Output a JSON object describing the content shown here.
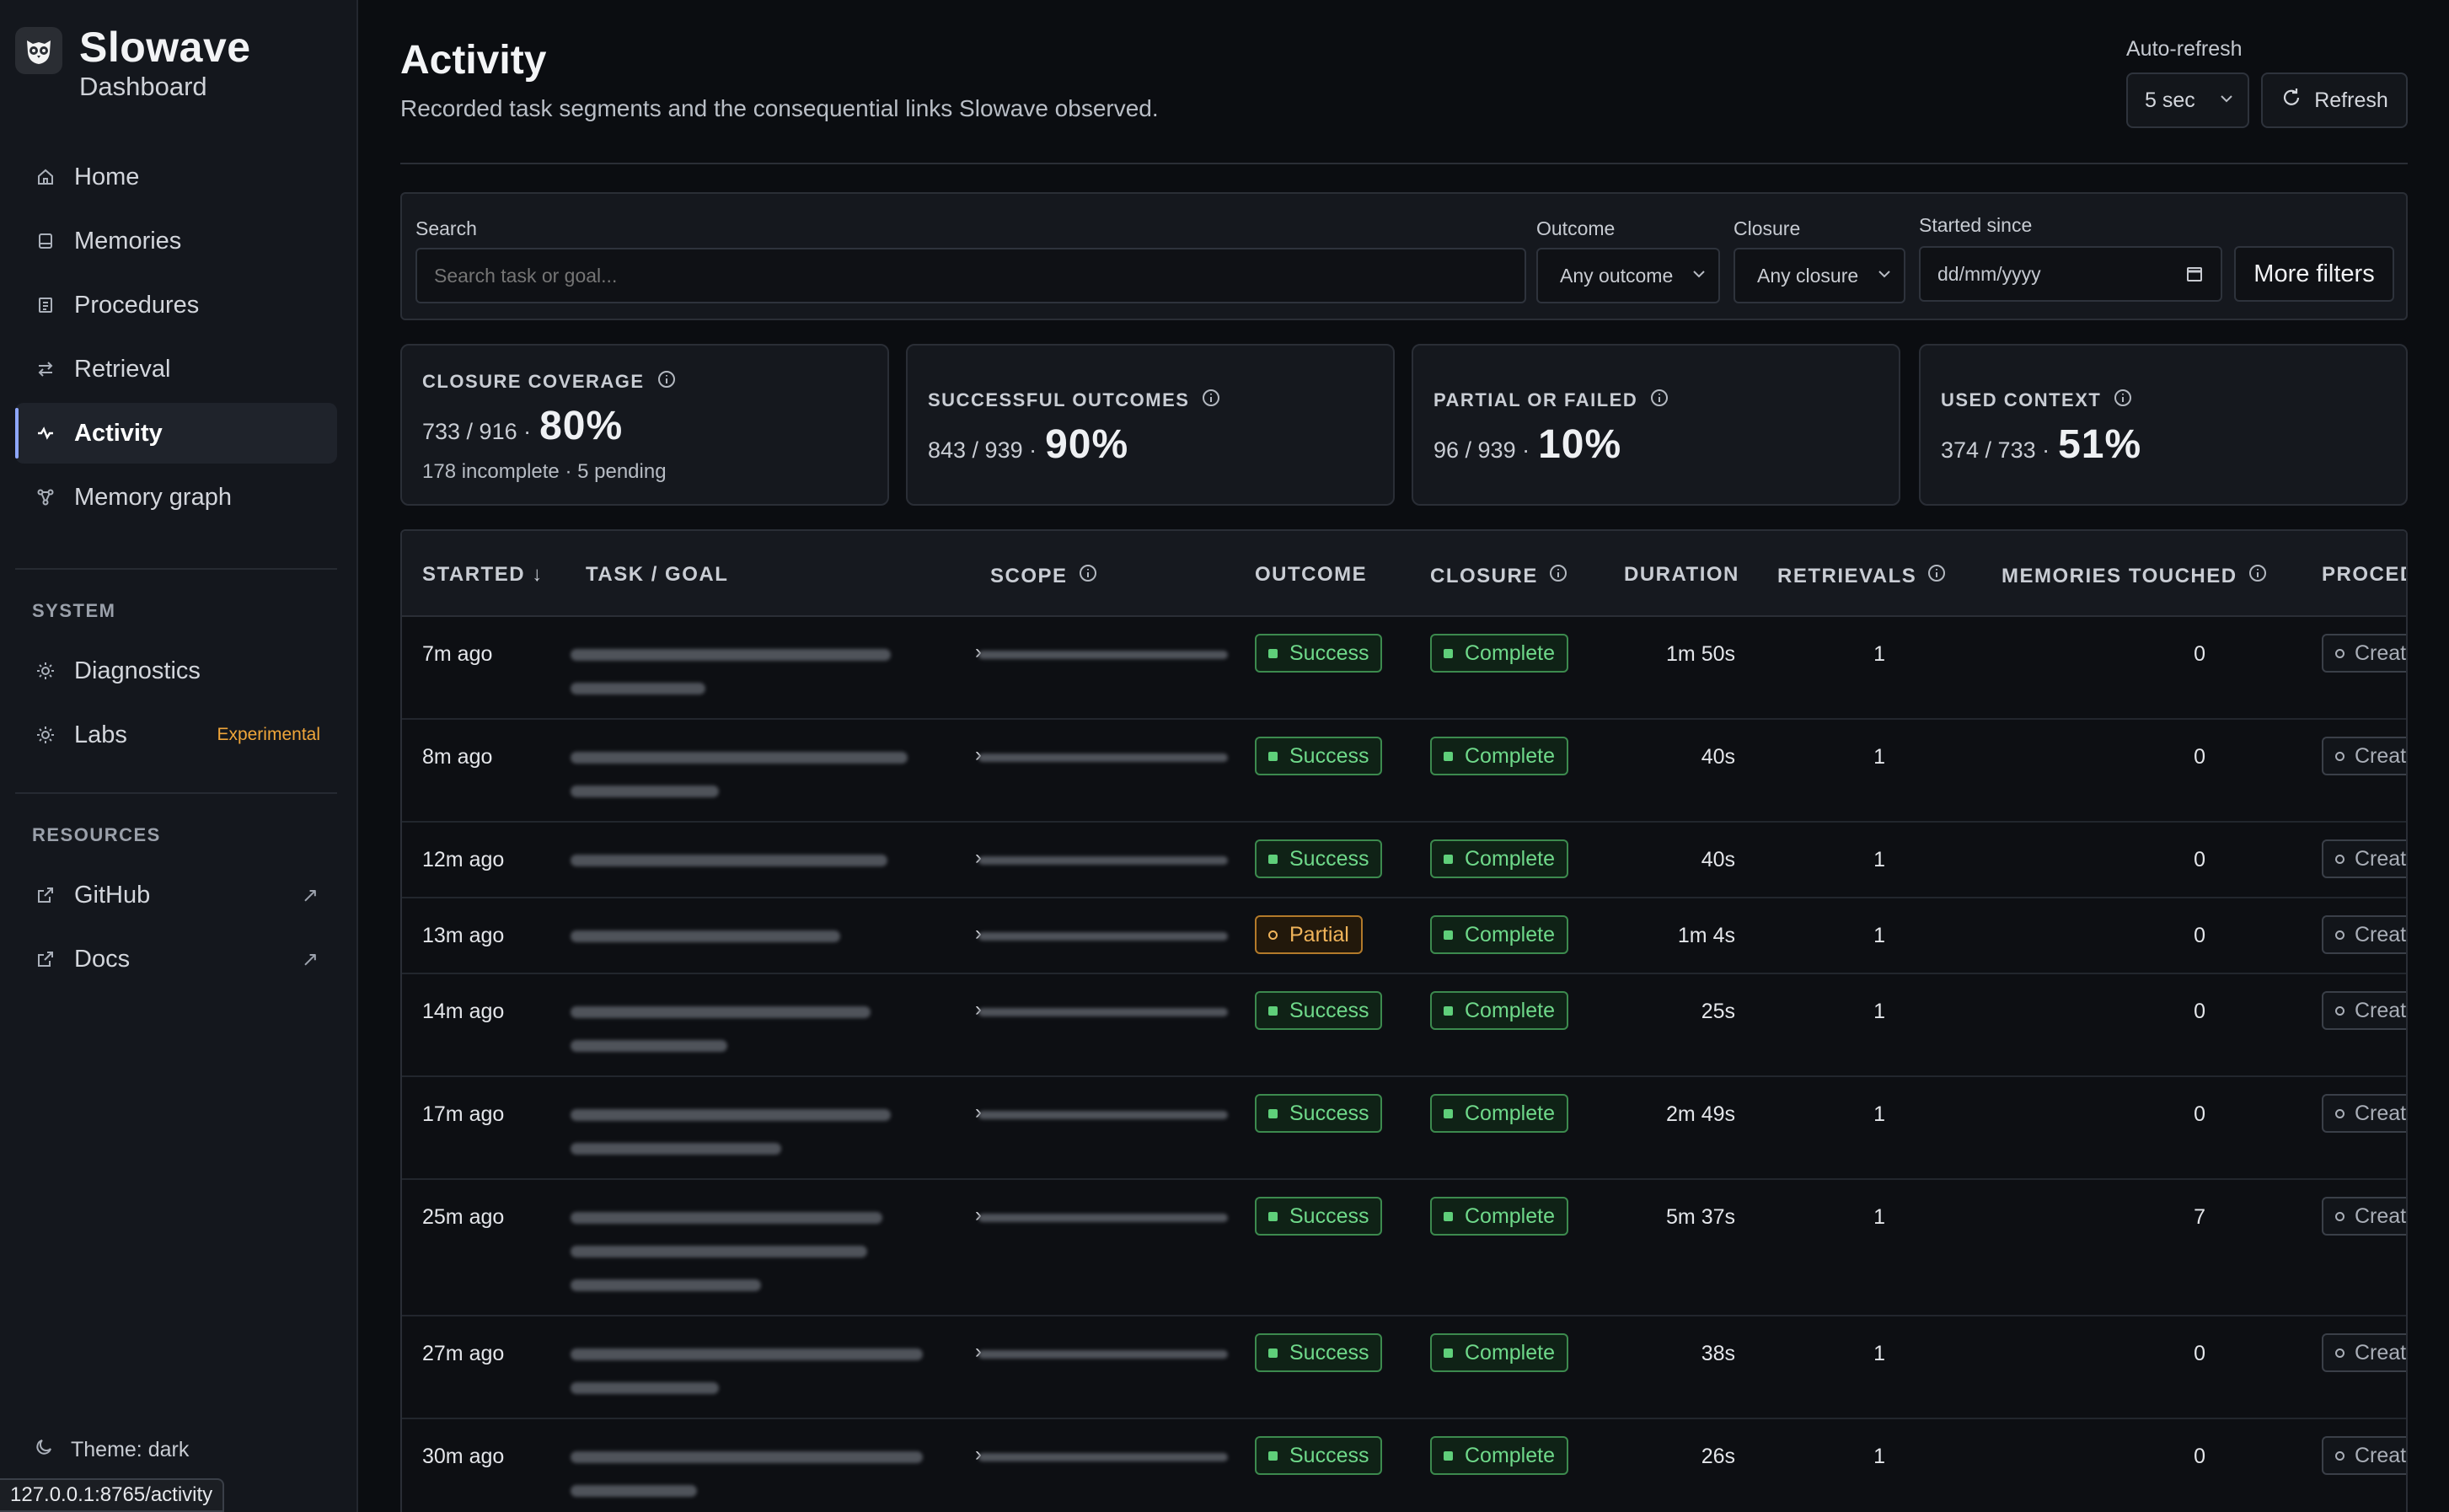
{
  "brand": {
    "title": "Slowave",
    "subtitle": "Dashboard",
    "logo_icon": "owl-icon"
  },
  "sidebar": {
    "items": [
      {
        "label": "Home",
        "icon": "home-icon"
      },
      {
        "label": "Memories",
        "icon": "memory-icon"
      },
      {
        "label": "Procedures",
        "icon": "document-icon"
      },
      {
        "label": "Retrieval",
        "icon": "arrows-icon"
      },
      {
        "label": "Activity",
        "icon": "pulse-icon",
        "active": true
      },
      {
        "label": "Memory graph",
        "icon": "graph-icon"
      }
    ],
    "system_heading": "SYSTEM",
    "system_items": [
      {
        "label": "Diagnostics",
        "icon": "sun-icon"
      },
      {
        "label": "Labs",
        "icon": "sun-icon",
        "badge": "Experimental"
      }
    ],
    "resources_heading": "RESOURCES",
    "resource_items": [
      {
        "label": "GitHub",
        "icon": "external-link-icon"
      },
      {
        "label": "Docs",
        "icon": "external-link-icon"
      }
    ],
    "theme": "Theme: dark",
    "url_tooltip": "127.0.0.1:8765/activity"
  },
  "header": {
    "title": "Activity",
    "subtitle": "Recorded task segments and the consequential links Slowave observed.",
    "auto_refresh_label": "Auto-refresh",
    "auto_refresh_value": "5 sec",
    "refresh_label": "Refresh"
  },
  "filters": {
    "search_label": "Search",
    "search_placeholder": "Search task or goal...",
    "outcome_label": "Outcome",
    "outcome_value": "Any outcome",
    "closure_label": "Closure",
    "closure_value": "Any closure",
    "started_label": "Started since",
    "started_placeholder": "dd/mm/yyyy",
    "more_label": "More filters"
  },
  "stats": [
    {
      "label": "CLOSURE COVERAGE",
      "fraction": "733 / 916 ·",
      "percent": "80%",
      "note": "178 incomplete · 5 pending"
    },
    {
      "label": "SUCCESSFUL OUTCOMES",
      "fraction": "843 / 939 ·",
      "percent": "90%"
    },
    {
      "label": "PARTIAL OR FAILED",
      "fraction": "96 / 939 ·",
      "percent": "10%"
    },
    {
      "label": "USED CONTEXT",
      "fraction": "374 / 733 ·",
      "percent": "51%"
    }
  ],
  "table": {
    "columns": {
      "started": "STARTED ↓",
      "task": "TASK / GOAL",
      "scope": "SCOPE",
      "outcome": "OUTCOME",
      "closure": "CLOSURE",
      "duration": "DURATION",
      "retrievals": "RETRIEVALS",
      "memories": "MEMORIES TOUCHED",
      "procedures": "PROCED"
    },
    "create_label": "Creat",
    "rows": [
      {
        "started": "7m ago",
        "outcome": "Success",
        "closure": "Complete",
        "duration": "1m 50s",
        "retrievals": "1",
        "memories": "0"
      },
      {
        "started": "8m ago",
        "outcome": "Success",
        "closure": "Complete",
        "duration": "40s",
        "retrievals": "1",
        "memories": "0"
      },
      {
        "started": "12m ago",
        "outcome": "Success",
        "closure": "Complete",
        "duration": "40s",
        "retrievals": "1",
        "memories": "0"
      },
      {
        "started": "13m ago",
        "outcome": "Partial",
        "closure": "Complete",
        "duration": "1m 4s",
        "retrievals": "1",
        "memories": "0"
      },
      {
        "started": "14m ago",
        "outcome": "Success",
        "closure": "Complete",
        "duration": "25s",
        "retrievals": "1",
        "memories": "0"
      },
      {
        "started": "17m ago",
        "outcome": "Success",
        "closure": "Complete",
        "duration": "2m 49s",
        "retrievals": "1",
        "memories": "0"
      },
      {
        "started": "25m ago",
        "outcome": "Success",
        "closure": "Complete",
        "duration": "5m 37s",
        "retrievals": "1",
        "memories": "7"
      },
      {
        "started": "27m ago",
        "outcome": "Success",
        "closure": "Complete",
        "duration": "38s",
        "retrievals": "1",
        "memories": "0"
      },
      {
        "started": "30m ago",
        "outcome": "Success",
        "closure": "Complete",
        "duration": "26s",
        "retrievals": "1",
        "memories": "0"
      }
    ]
  },
  "colors": {
    "accent": "#8ea7ff",
    "success": "#6fd98a",
    "partial": "#f0b45a",
    "experimental": "#f0a63a"
  }
}
